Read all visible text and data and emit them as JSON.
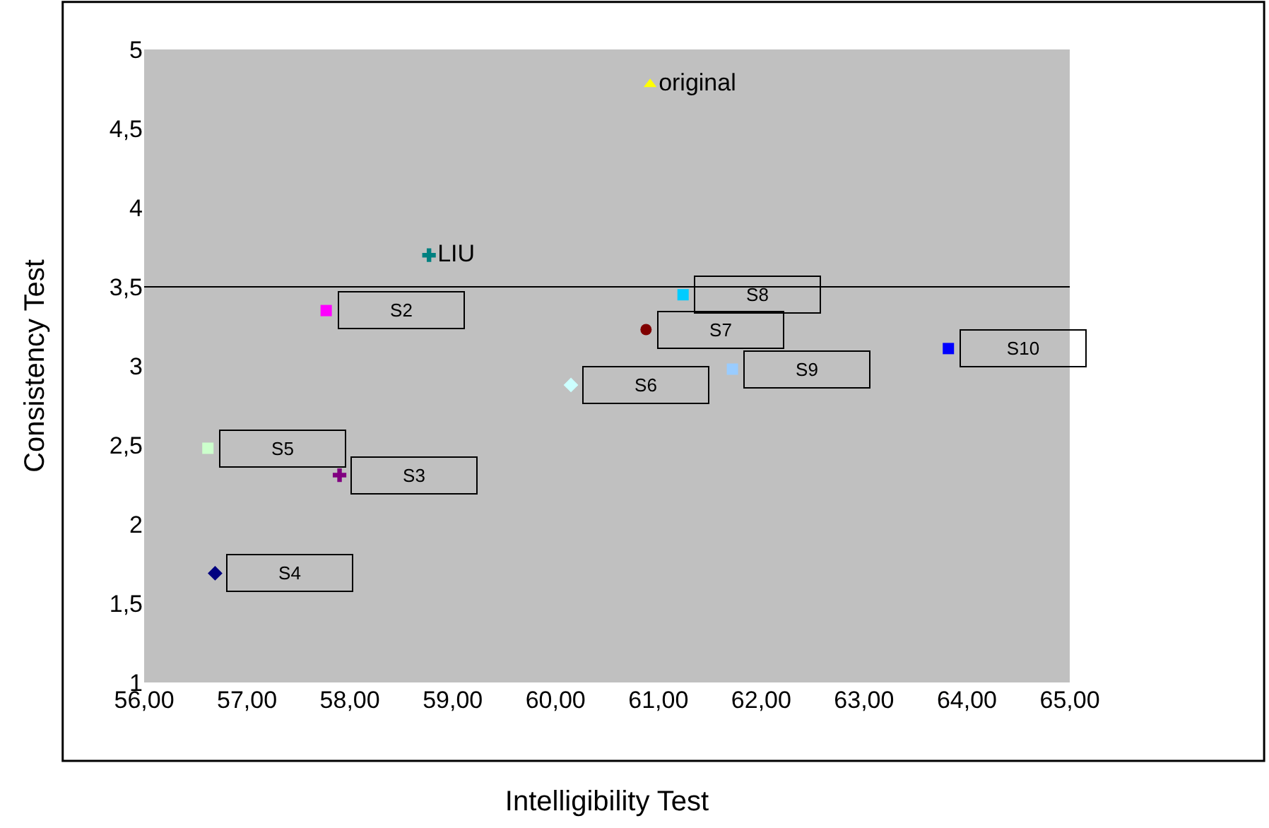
{
  "chart_data": {
    "type": "scatter",
    "xlabel": "Intelligibility Test",
    "ylabel": "Consistency Test",
    "xlim": [
      56,
      65
    ],
    "ylim": [
      1,
      5
    ],
    "xticks": [
      {
        "value": 56,
        "label": "56,00"
      },
      {
        "value": 57,
        "label": "57,00"
      },
      {
        "value": 58,
        "label": "58,00"
      },
      {
        "value": 59,
        "label": "59,00"
      },
      {
        "value": 60,
        "label": "60,00"
      },
      {
        "value": 61,
        "label": "61,00"
      },
      {
        "value": 62,
        "label": "62,00"
      },
      {
        "value": 63,
        "label": "63,00"
      },
      {
        "value": 64,
        "label": "64,00"
      },
      {
        "value": 65,
        "label": "65,00"
      }
    ],
    "yticks": [
      1,
      {
        "value": 1.5,
        "label": "1,5"
      },
      2,
      {
        "value": 2.5,
        "label": "2,5"
      },
      3,
      {
        "value": 3.5,
        "label": "3,5"
      },
      4,
      {
        "value": 4.5,
        "label": "4,5"
      },
      5
    ],
    "grid": false,
    "legend": false,
    "series": [
      {
        "name": "original",
        "color": "#ffff00",
        "marker": "triangle",
        "x": [
          60.92
        ],
        "values": [
          4.78
        ]
      },
      {
        "name": "LIU",
        "color": "#008080",
        "marker": "cross",
        "x": [
          58.77
        ],
        "values": [
          3.7
        ]
      },
      {
        "name": "S2",
        "color": "#ff00ff",
        "marker": "square",
        "x": [
          57.77
        ],
        "values": [
          3.35
        ]
      },
      {
        "name": "S5",
        "color": "#ccffcc",
        "marker": "square",
        "x": [
          56.62
        ],
        "values": [
          2.48
        ]
      },
      {
        "name": "S3",
        "color": "#800080",
        "marker": "cross",
        "x": [
          57.9
        ],
        "values": [
          2.31
        ]
      },
      {
        "name": "S4",
        "color": "#000080",
        "marker": "diamond",
        "x": [
          56.69
        ],
        "values": [
          1.69
        ]
      },
      {
        "name": "S6",
        "color": "#ccffff",
        "marker": "diamond",
        "x": [
          60.15
        ],
        "values": [
          2.88
        ]
      },
      {
        "name": "S7",
        "color": "#800000",
        "marker": "circle",
        "x": [
          60.88
        ],
        "values": [
          3.23
        ]
      },
      {
        "name": "S8",
        "color": "#00ccff",
        "marker": "square",
        "x": [
          61.24
        ],
        "values": [
          3.45
        ]
      },
      {
        "name": "S9",
        "color": "#99ccff",
        "marker": "square",
        "x": [
          61.72
        ],
        "values": [
          2.98
        ]
      },
      {
        "name": "S10",
        "color": "#0000ff",
        "marker": "square",
        "x": [
          63.82
        ],
        "values": [
          3.11
        ]
      }
    ],
    "ref_lines": [
      {
        "axis": "y",
        "value": 3.5,
        "color": "#000000"
      }
    ]
  }
}
